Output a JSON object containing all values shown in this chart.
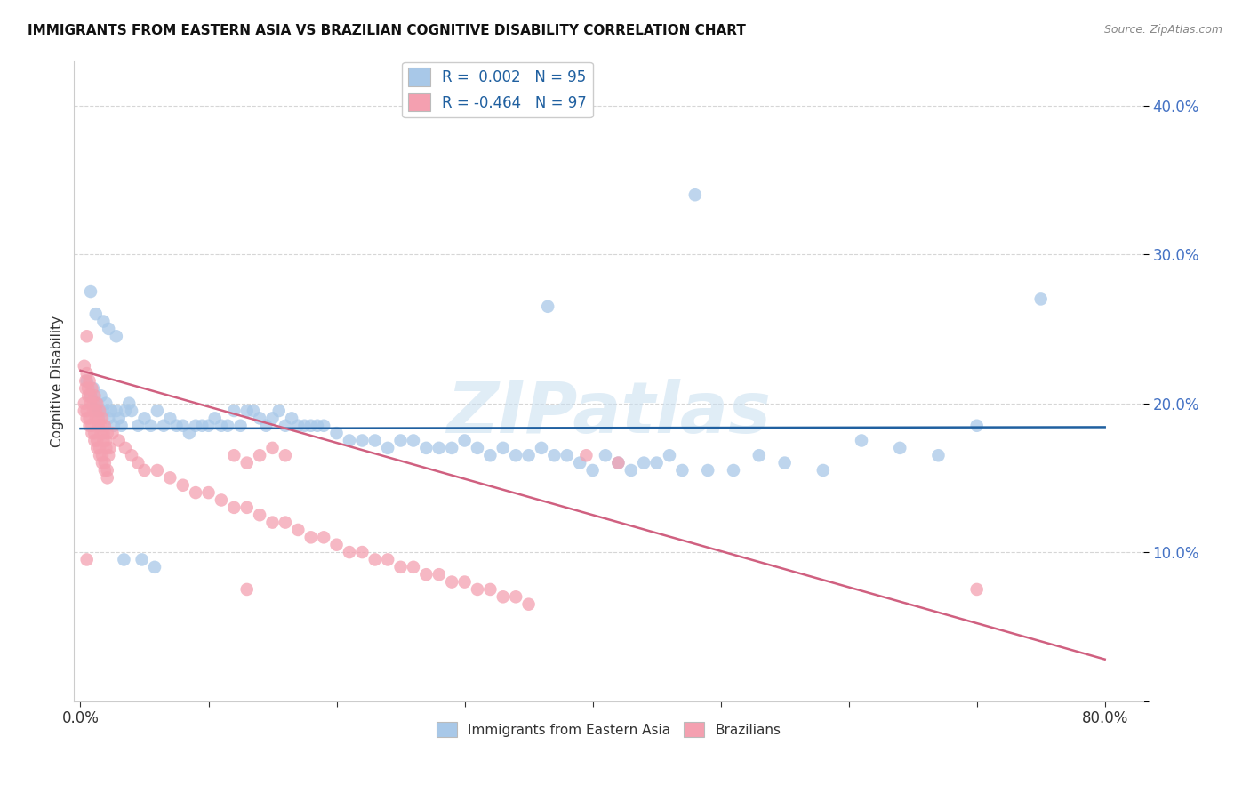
{
  "title": "IMMIGRANTS FROM EASTERN ASIA VS BRAZILIAN COGNITIVE DISABILITY CORRELATION CHART",
  "source": "Source: ZipAtlas.com",
  "ylabel": "Cognitive Disability",
  "ylim": [
    0.0,
    0.43
  ],
  "xlim": [
    -0.005,
    0.83
  ],
  "ytick_positions": [
    0.0,
    0.1,
    0.2,
    0.3,
    0.4
  ],
  "ytick_labels": [
    "",
    "10.0%",
    "20.0%",
    "30.0%",
    "40.0%"
  ],
  "xtick_positions": [
    0.0,
    0.1,
    0.2,
    0.3,
    0.4,
    0.5,
    0.6,
    0.7,
    0.8
  ],
  "xtick_labels": [
    "0.0%",
    "",
    "",
    "",
    "",
    "",
    "",
    "",
    "80.0%"
  ],
  "background_color": "#ffffff",
  "watermark": "ZIPatlas",
  "blue_R": "0.002",
  "blue_N": "95",
  "pink_R": "-0.464",
  "pink_N": "97",
  "blue_color": "#a8c8e8",
  "pink_color": "#f4a0b0",
  "blue_line_color": "#2060a0",
  "pink_line_color": "#d06080",
  "legend_label_blue": "Immigrants from Eastern Asia",
  "legend_label_pink": "Brazilians",
  "blue_line_x": [
    0.0,
    0.8
  ],
  "blue_line_y": [
    0.183,
    0.184
  ],
  "pink_line_x": [
    0.0,
    0.8
  ],
  "pink_line_y": [
    0.222,
    0.028
  ],
  "blue_scatter_x": [
    0.005,
    0.008,
    0.01,
    0.012,
    0.014,
    0.016,
    0.018,
    0.02,
    0.022,
    0.024,
    0.026,
    0.028,
    0.03,
    0.032,
    0.035,
    0.038,
    0.04,
    0.045,
    0.05,
    0.055,
    0.06,
    0.065,
    0.07,
    0.075,
    0.08,
    0.085,
    0.09,
    0.095,
    0.1,
    0.105,
    0.11,
    0.115,
    0.12,
    0.125,
    0.13,
    0.135,
    0.14,
    0.145,
    0.15,
    0.155,
    0.16,
    0.165,
    0.17,
    0.175,
    0.18,
    0.185,
    0.19,
    0.2,
    0.21,
    0.22,
    0.23,
    0.24,
    0.25,
    0.26,
    0.27,
    0.28,
    0.29,
    0.3,
    0.31,
    0.32,
    0.33,
    0.34,
    0.35,
    0.36,
    0.37,
    0.38,
    0.39,
    0.4,
    0.41,
    0.42,
    0.43,
    0.44,
    0.45,
    0.46,
    0.47,
    0.49,
    0.51,
    0.53,
    0.55,
    0.58,
    0.61,
    0.64,
    0.67,
    0.7,
    0.75,
    0.48,
    0.365,
    0.008,
    0.012,
    0.018,
    0.022,
    0.028,
    0.034,
    0.048,
    0.058
  ],
  "blue_scatter_y": [
    0.215,
    0.205,
    0.21,
    0.2,
    0.195,
    0.205,
    0.195,
    0.2,
    0.19,
    0.195,
    0.185,
    0.195,
    0.19,
    0.185,
    0.195,
    0.2,
    0.195,
    0.185,
    0.19,
    0.185,
    0.195,
    0.185,
    0.19,
    0.185,
    0.185,
    0.18,
    0.185,
    0.185,
    0.185,
    0.19,
    0.185,
    0.185,
    0.195,
    0.185,
    0.195,
    0.195,
    0.19,
    0.185,
    0.19,
    0.195,
    0.185,
    0.19,
    0.185,
    0.185,
    0.185,
    0.185,
    0.185,
    0.18,
    0.175,
    0.175,
    0.175,
    0.17,
    0.175,
    0.175,
    0.17,
    0.17,
    0.17,
    0.175,
    0.17,
    0.165,
    0.17,
    0.165,
    0.165,
    0.17,
    0.165,
    0.165,
    0.16,
    0.155,
    0.165,
    0.16,
    0.155,
    0.16,
    0.16,
    0.165,
    0.155,
    0.155,
    0.155,
    0.165,
    0.16,
    0.155,
    0.175,
    0.17,
    0.165,
    0.185,
    0.27,
    0.34,
    0.265,
    0.275,
    0.26,
    0.255,
    0.25,
    0.245,
    0.095,
    0.095,
    0.09
  ],
  "pink_scatter_x": [
    0.003,
    0.005,
    0.007,
    0.009,
    0.011,
    0.013,
    0.015,
    0.017,
    0.019,
    0.021,
    0.004,
    0.006,
    0.008,
    0.01,
    0.012,
    0.014,
    0.016,
    0.018,
    0.02,
    0.022,
    0.003,
    0.005,
    0.007,
    0.009,
    0.011,
    0.013,
    0.015,
    0.017,
    0.019,
    0.021,
    0.004,
    0.006,
    0.008,
    0.01,
    0.012,
    0.014,
    0.016,
    0.018,
    0.02,
    0.023,
    0.003,
    0.005,
    0.007,
    0.009,
    0.011,
    0.013,
    0.015,
    0.017,
    0.019,
    0.021,
    0.025,
    0.03,
    0.035,
    0.04,
    0.045,
    0.05,
    0.06,
    0.07,
    0.08,
    0.09,
    0.1,
    0.11,
    0.12,
    0.13,
    0.14,
    0.15,
    0.16,
    0.17,
    0.18,
    0.19,
    0.2,
    0.21,
    0.22,
    0.23,
    0.24,
    0.25,
    0.26,
    0.27,
    0.28,
    0.29,
    0.3,
    0.31,
    0.32,
    0.33,
    0.34,
    0.35,
    0.005,
    0.005,
    0.13,
    0.7,
    0.12,
    0.13,
    0.14,
    0.15,
    0.16,
    0.395,
    0.42
  ],
  "pink_scatter_y": [
    0.225,
    0.22,
    0.215,
    0.21,
    0.205,
    0.2,
    0.195,
    0.19,
    0.185,
    0.18,
    0.21,
    0.205,
    0.2,
    0.195,
    0.19,
    0.185,
    0.18,
    0.175,
    0.17,
    0.165,
    0.2,
    0.195,
    0.19,
    0.185,
    0.18,
    0.175,
    0.17,
    0.165,
    0.16,
    0.155,
    0.215,
    0.21,
    0.205,
    0.2,
    0.195,
    0.19,
    0.185,
    0.18,
    0.175,
    0.17,
    0.195,
    0.19,
    0.185,
    0.18,
    0.175,
    0.17,
    0.165,
    0.16,
    0.155,
    0.15,
    0.18,
    0.175,
    0.17,
    0.165,
    0.16,
    0.155,
    0.155,
    0.15,
    0.145,
    0.14,
    0.14,
    0.135,
    0.13,
    0.13,
    0.125,
    0.12,
    0.12,
    0.115,
    0.11,
    0.11,
    0.105,
    0.1,
    0.1,
    0.095,
    0.095,
    0.09,
    0.09,
    0.085,
    0.085,
    0.08,
    0.08,
    0.075,
    0.075,
    0.07,
    0.07,
    0.065,
    0.245,
    0.095,
    0.075,
    0.075,
    0.165,
    0.16,
    0.165,
    0.17,
    0.165,
    0.165,
    0.16
  ]
}
